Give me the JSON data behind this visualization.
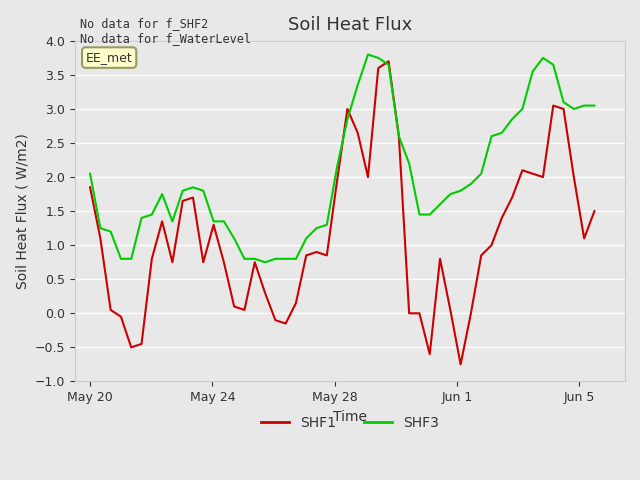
{
  "title": "Soil Heat Flux",
  "xlabel": "Time",
  "ylabel": "Soil Heat Flux ( W/m2)",
  "ylim": [
    -1.0,
    4.0
  ],
  "yticks": [
    -1.0,
    -0.5,
    0.0,
    0.5,
    1.0,
    1.5,
    2.0,
    2.5,
    3.0,
    3.5,
    4.0
  ],
  "bg_color": "#e8e8e8",
  "plot_bg_color": "#e8e8e8",
  "grid_color": "#ffffff",
  "annotation_text": "No data for f_SHF2\nNo data for f_WaterLevel",
  "legend_label_box": "EE_met",
  "legend_label_box_facecolor": "#ffffcc",
  "legend_label_box_edgecolor": "#999966",
  "shf1_color": "#cc0000",
  "shf3_color": "#00cc00",
  "line_width": 1.5,
  "x_tick_labels": [
    "May 20",
    "May 24",
    "May 28",
    "Jun 1",
    "Jun 5"
  ],
  "x_tick_positions": [
    0,
    4,
    8,
    12,
    16
  ],
  "shf1": [
    1.85,
    1.1,
    0.05,
    -0.05,
    -0.5,
    -0.45,
    0.8,
    1.35,
    0.75,
    1.65,
    1.7,
    0.75,
    1.3,
    0.75,
    0.1,
    0.05,
    0.75,
    0.3,
    -0.1,
    -0.15,
    0.15,
    0.85,
    0.9,
    0.85,
    1.95,
    3.0,
    2.65,
    2.0,
    3.6,
    3.7,
    2.6,
    0.0,
    0.0,
    -0.6,
    0.8,
    0.05,
    -0.75,
    0.0,
    0.85,
    1.0,
    1.4,
    1.7,
    2.1,
    2.05,
    2.0,
    3.05,
    3.0,
    2.0,
    1.1,
    1.5
  ],
  "shf3": [
    2.05,
    1.25,
    1.2,
    0.8,
    0.8,
    1.4,
    1.45,
    1.75,
    1.35,
    1.8,
    1.85,
    1.8,
    1.35,
    1.35,
    1.1,
    0.8,
    0.8,
    0.75,
    0.8,
    0.8,
    0.8,
    1.1,
    1.25,
    1.3,
    2.15,
    2.85,
    3.35,
    3.8,
    3.75,
    3.65,
    2.6,
    2.2,
    1.45,
    1.45,
    1.6,
    1.75,
    1.8,
    1.9,
    2.05,
    2.6,
    2.65,
    2.85,
    3.0,
    3.55,
    3.75,
    3.65,
    3.1,
    3.0,
    3.05,
    3.05
  ]
}
